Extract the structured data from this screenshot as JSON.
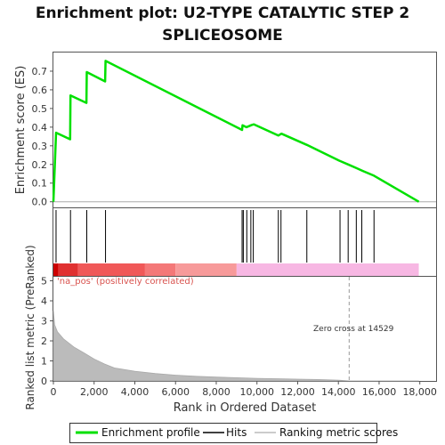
{
  "chart_data": {
    "type": "line",
    "title_line1": "Enrichment plot: U2-TYPE CATALYTIC STEP 2",
    "title_line2": "SPLICEOSOME",
    "top_panel": {
      "ylabel": "Enrichment score (ES)",
      "ylim": [
        -0.03,
        0.8
      ],
      "yticks": [
        "0.0",
        "0.1",
        "0.2",
        "0.3",
        "0.4",
        "0.5",
        "0.6",
        "0.7"
      ],
      "ytick_values": [
        0.0,
        0.1,
        0.2,
        0.3,
        0.4,
        0.5,
        0.6,
        0.7
      ],
      "series": [
        {
          "name": "Enrichment profile",
          "color": "#00e000",
          "points": [
            [
              0,
              0.0
            ],
            [
              130,
              0.37
            ],
            [
              820,
              0.335
            ],
            [
              840,
              0.57
            ],
            [
              1620,
              0.53
            ],
            [
              1640,
              0.695
            ],
            [
              2540,
              0.645
            ],
            [
              2560,
              0.755
            ],
            [
              9270,
              0.385
            ],
            [
              9290,
              0.41
            ],
            [
              9480,
              0.4
            ],
            [
              9600,
              0.405
            ],
            [
              9700,
              0.41
            ],
            [
              9760,
              0.412
            ],
            [
              9850,
              0.415
            ],
            [
              11050,
              0.355
            ],
            [
              11200,
              0.365
            ],
            [
              12450,
              0.305
            ],
            [
              14050,
              0.22
            ],
            [
              14480,
              0.2
            ],
            [
              14900,
              0.18
            ],
            [
              15200,
              0.165
            ],
            [
              15750,
              0.14
            ],
            [
              17950,
              0.0
            ]
          ]
        }
      ]
    },
    "hits": [
      130,
      840,
      1640,
      2560,
      9270,
      9330,
      9500,
      9700,
      9820,
      11050,
      11180,
      12450,
      14080,
      14480,
      14880,
      15150,
      15750
    ],
    "bar_segments": [
      {
        "from": 0,
        "to": 250,
        "color": "#cc0000"
      },
      {
        "from": 250,
        "to": 1200,
        "color": "#e03030"
      },
      {
        "from": 1200,
        "to": 4500,
        "color": "#f05858"
      },
      {
        "from": 4500,
        "to": 6000,
        "color": "#f47878"
      },
      {
        "from": 6000,
        "to": 9000,
        "color": "#f79a9a"
      },
      {
        "from": 9000,
        "to": 17950,
        "color": "#f7b7e3"
      }
    ],
    "bottom_panel": {
      "ylabel": "Ranked list metric (PreRanked)",
      "ylim": [
        0,
        5.2
      ],
      "yticks": [
        "0",
        "1",
        "2",
        "3",
        "4",
        "5"
      ],
      "ytick_values": [
        0,
        1,
        2,
        3,
        4,
        5
      ],
      "positive_label": "'na_pos' (positively correlated)",
      "zero_cross_label": "Zero cross at 14529",
      "zero_cross": 14529,
      "metric_curve": [
        [
          0,
          3.5
        ],
        [
          60,
          2.8
        ],
        [
          200,
          2.45
        ],
        [
          500,
          2.1
        ],
        [
          1000,
          1.7
        ],
        [
          1500,
          1.4
        ],
        [
          2000,
          1.1
        ],
        [
          2500,
          0.85
        ],
        [
          3000,
          0.65
        ],
        [
          4000,
          0.48
        ],
        [
          5000,
          0.37
        ],
        [
          6000,
          0.29
        ],
        [
          7000,
          0.23
        ],
        [
          8000,
          0.19
        ],
        [
          9000,
          0.16
        ],
        [
          10000,
          0.13
        ],
        [
          11000,
          0.11
        ],
        [
          12000,
          0.09
        ],
        [
          13000,
          0.07
        ],
        [
          14000,
          0.04
        ],
        [
          14529,
          0.0
        ],
        [
          17950,
          0.0
        ]
      ]
    },
    "xlabel": "Rank in Ordered Dataset",
    "xlim": [
      0,
      18800
    ],
    "xticks": [
      "0",
      "2,000",
      "4,000",
      "6,000",
      "8,000",
      "10,000",
      "12,000",
      "14,000",
      "16,000",
      "18,000"
    ],
    "xtick_values": [
      0,
      2000,
      4000,
      6000,
      8000,
      10000,
      12000,
      14000,
      16000,
      18000
    ],
    "legend": {
      "placement": "bottom",
      "items": [
        {
          "label": "Enrichment profile",
          "color": "#00e000"
        },
        {
          "label": "Hits",
          "color": "#000000"
        },
        {
          "label": "Ranking metric scores",
          "color": "#bbbbbb"
        }
      ]
    },
    "grid": false
  }
}
